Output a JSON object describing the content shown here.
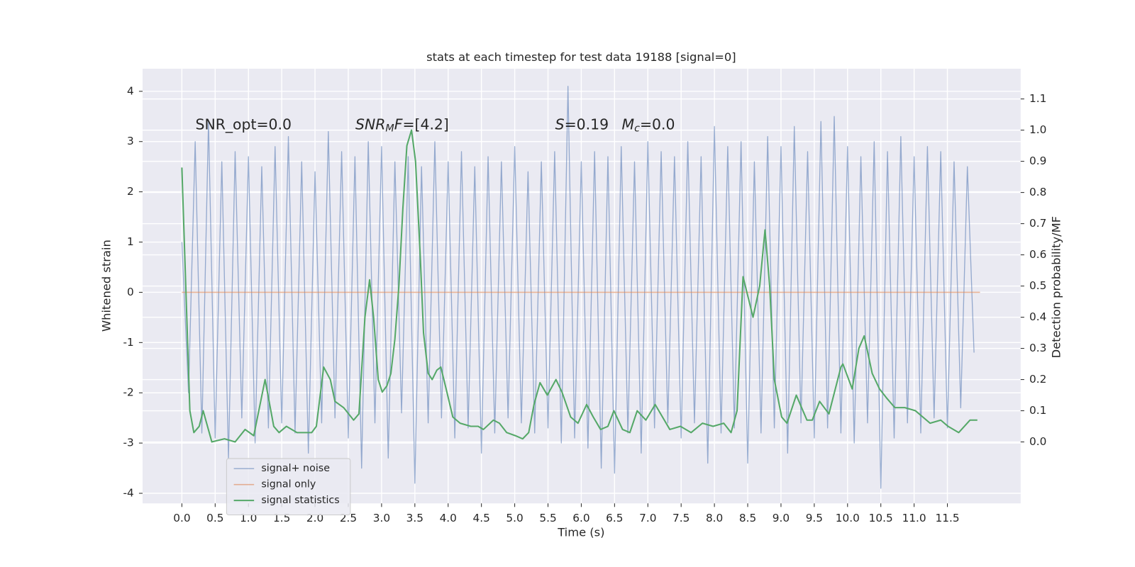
{
  "chart_data": {
    "type": "line",
    "title": "stats at each timestep for test data 19188 [signal=0]",
    "xlabel": "Time (s)",
    "ylabel": "Whitened strain",
    "y2label": "Detection probability/MF",
    "xlim": [
      -0.59,
      12.6
    ],
    "ylim": [
      -4.2,
      4.45
    ],
    "y2lim": [
      -0.197,
      1.197
    ],
    "xticks": [
      {
        "value": 0,
        "label": "0.0"
      },
      0.5,
      {
        "value": 1,
        "label": "1.0"
      },
      1.5,
      {
        "value": 2,
        "label": "2.0"
      },
      2.5,
      {
        "value": 3,
        "label": "3.0"
      },
      3.5,
      {
        "value": 4,
        "label": "4.0"
      },
      4.5,
      {
        "value": 5,
        "label": "5.0"
      },
      5.5,
      {
        "value": 6,
        "label": "6.0"
      },
      6.5,
      {
        "value": 7,
        "label": "7.0"
      },
      7.5,
      {
        "value": 8,
        "label": "8.0"
      },
      8.5,
      {
        "value": 9,
        "label": "9.0"
      },
      9.5,
      {
        "value": 10,
        "label": "10.0"
      },
      10.5,
      {
        "value": 11,
        "label": "11.0"
      },
      11.5
    ],
    "yticks": [
      -4,
      -3,
      -2,
      -1,
      0,
      1,
      2,
      3,
      4
    ],
    "y2ticks": [
      {
        "value": 0,
        "label": "0.0"
      },
      0.1,
      0.2,
      0.3,
      0.4,
      0.5,
      0.6,
      0.7,
      0.8,
      0.9,
      {
        "value": 1,
        "label": "1.0"
      },
      1.1
    ],
    "grid": true,
    "legend": "lower left",
    "annotations": [
      [
        {
          "text": "SNR_opt=0.0",
          "style": "normal"
        }
      ],
      [
        {
          "text": "SNR",
          "style": "italic"
        },
        {
          "text": "M",
          "style": "italic-sub"
        },
        {
          "text": "F",
          "style": "italic"
        },
        {
          "text": "=[4.2]",
          "style": "normal"
        }
      ],
      [
        {
          "text": "S",
          "style": "italic"
        },
        {
          "text": "=0.19",
          "style": "normal"
        }
      ],
      [
        {
          "text": "M",
          "style": "italic"
        },
        {
          "text": "c",
          "style": "italic-sub"
        },
        {
          "text": "=0.0",
          "style": "normal"
        }
      ]
    ],
    "series": [
      {
        "name": "signal+ noise",
        "color": "#4c72b0",
        "axis": "y",
        "x": [
          0.0,
          0.1,
          0.2,
          0.3,
          0.4,
          0.5,
          0.6,
          0.7,
          0.8,
          0.9,
          1.0,
          1.1,
          1.2,
          1.3,
          1.4,
          1.5,
          1.6,
          1.7,
          1.8,
          1.9,
          2.0,
          2.1,
          2.2,
          2.3,
          2.4,
          2.5,
          2.6,
          2.7,
          2.8,
          2.9,
          3.0,
          3.1,
          3.2,
          3.3,
          3.4,
          3.5,
          3.6,
          3.7,
          3.8,
          3.9,
          4.0,
          4.1,
          4.2,
          4.3,
          4.4,
          4.5,
          4.6,
          4.7,
          4.8,
          4.9,
          5.0,
          5.1,
          5.2,
          5.3,
          5.4,
          5.5,
          5.6,
          5.7,
          5.8,
          5.9,
          6.0,
          6.1,
          6.2,
          6.3,
          6.4,
          6.5,
          6.6,
          6.7,
          6.8,
          6.9,
          7.0,
          7.1,
          7.2,
          7.3,
          7.4,
          7.5,
          7.6,
          7.7,
          7.8,
          7.9,
          8.0,
          8.1,
          8.2,
          8.3,
          8.4,
          8.5,
          8.6,
          8.7,
          8.8,
          8.9,
          9.0,
          9.1,
          9.2,
          9.3,
          9.4,
          9.5,
          9.6,
          9.7,
          9.8,
          9.9,
          10.0,
          10.1,
          10.2,
          10.3,
          10.4,
          10.5,
          10.6,
          10.7,
          10.8,
          10.9,
          11.0,
          11.1,
          11.2,
          11.3,
          11.4,
          11.5,
          11.6,
          11.7,
          11.8,
          11.9
        ],
        "values": [
          1.0,
          -2.0,
          3.0,
          -2.8,
          3.4,
          -2.9,
          2.6,
          -3.3,
          2.8,
          -2.5,
          2.7,
          -3.0,
          2.5,
          -2.7,
          2.9,
          -2.6,
          3.1,
          -2.8,
          2.6,
          -3.2,
          2.4,
          -2.6,
          3.2,
          -2.5,
          2.8,
          -2.9,
          2.7,
          -3.5,
          3.0,
          -2.6,
          2.9,
          -3.3,
          2.6,
          -2.4,
          2.7,
          -3.8,
          2.5,
          -2.6,
          3.0,
          -2.5,
          2.6,
          -2.9,
          2.8,
          -2.7,
          2.5,
          -3.2,
          2.7,
          -2.8,
          2.6,
          -2.5,
          2.9,
          -2.6,
          2.4,
          -2.8,
          2.6,
          -2.7,
          2.8,
          -3.0,
          4.1,
          -2.9,
          2.6,
          -3.1,
          2.8,
          -3.5,
          2.7,
          -3.6,
          2.9,
          -2.8,
          2.6,
          -3.2,
          3.0,
          -2.7,
          2.8,
          -2.6,
          2.7,
          -2.9,
          3.0,
          -2.6,
          2.7,
          -3.4,
          3.3,
          -2.8,
          2.9,
          -2.7,
          3.0,
          -3.4,
          2.6,
          -2.8,
          3.1,
          -2.7,
          2.9,
          -3.2,
          3.3,
          -2.6,
          2.8,
          -2.9,
          3.4,
          -2.7,
          3.5,
          -2.8,
          2.9,
          -3.0,
          2.7,
          -2.6,
          3.0,
          -3.9,
          2.8,
          -2.9,
          3.1,
          -2.6,
          2.7,
          -2.8,
          2.9,
          -2.5,
          2.8,
          -2.7,
          2.6,
          -2.3,
          2.5,
          -1.2
        ]
      },
      {
        "name": "signal only",
        "color": "#dd8452",
        "axis": "y",
        "x": [
          0.0,
          11.99
        ],
        "values": [
          0,
          0
        ]
      },
      {
        "name": "signal statistics",
        "color": "#55a868",
        "axis": "y2",
        "x": [
          0.0,
          0.12,
          0.18,
          0.26,
          0.32,
          0.45,
          0.64,
          0.8,
          0.95,
          1.08,
          1.25,
          1.38,
          1.46,
          1.57,
          1.73,
          1.95,
          2.02,
          2.13,
          2.23,
          2.3,
          2.43,
          2.58,
          2.66,
          2.75,
          2.82,
          2.88,
          2.95,
          3.01,
          3.08,
          3.14,
          3.2,
          3.26,
          3.32,
          3.38,
          3.45,
          3.51,
          3.58,
          3.63,
          3.7,
          3.76,
          3.83,
          3.89,
          3.97,
          4.07,
          4.18,
          4.34,
          4.45,
          4.53,
          4.68,
          4.77,
          4.88,
          5.01,
          5.12,
          5.21,
          5.29,
          5.38,
          5.49,
          5.62,
          5.71,
          5.84,
          5.95,
          6.08,
          6.18,
          6.29,
          6.4,
          6.49,
          6.62,
          6.73,
          6.84,
          6.97,
          7.11,
          7.22,
          7.33,
          7.49,
          7.65,
          7.82,
          7.98,
          8.14,
          8.25,
          8.34,
          8.43,
          8.58,
          8.68,
          8.76,
          8.83,
          8.9,
          9.01,
          9.09,
          9.23,
          9.39,
          9.47,
          9.58,
          9.72,
          9.9,
          9.93,
          10.07,
          10.17,
          10.25,
          10.37,
          10.48,
          10.59,
          10.71,
          10.86,
          11.02,
          11.24,
          11.4,
          11.51,
          11.67,
          11.84,
          11.95
        ],
        "values": [
          0.88,
          0.1,
          0.03,
          0.05,
          0.1,
          0.0,
          0.01,
          0.0,
          0.04,
          0.02,
          0.2,
          0.05,
          0.03,
          0.05,
          0.03,
          0.03,
          0.05,
          0.24,
          0.2,
          0.13,
          0.11,
          0.07,
          0.09,
          0.4,
          0.52,
          0.4,
          0.2,
          0.16,
          0.18,
          0.22,
          0.33,
          0.5,
          0.75,
          0.95,
          1.0,
          0.9,
          0.6,
          0.35,
          0.22,
          0.2,
          0.23,
          0.24,
          0.17,
          0.08,
          0.06,
          0.05,
          0.05,
          0.04,
          0.07,
          0.06,
          0.03,
          0.02,
          0.01,
          0.03,
          0.12,
          0.19,
          0.15,
          0.2,
          0.16,
          0.08,
          0.06,
          0.12,
          0.08,
          0.04,
          0.05,
          0.1,
          0.04,
          0.03,
          0.1,
          0.07,
          0.12,
          0.08,
          0.04,
          0.05,
          0.03,
          0.06,
          0.05,
          0.06,
          0.03,
          0.1,
          0.53,
          0.4,
          0.5,
          0.68,
          0.5,
          0.2,
          0.08,
          0.06,
          0.15,
          0.07,
          0.07,
          0.13,
          0.09,
          0.24,
          0.25,
          0.17,
          0.3,
          0.34,
          0.22,
          0.17,
          0.14,
          0.11,
          0.11,
          0.1,
          0.06,
          0.07,
          0.05,
          0.03,
          0.07,
          0.07
        ]
      }
    ]
  }
}
